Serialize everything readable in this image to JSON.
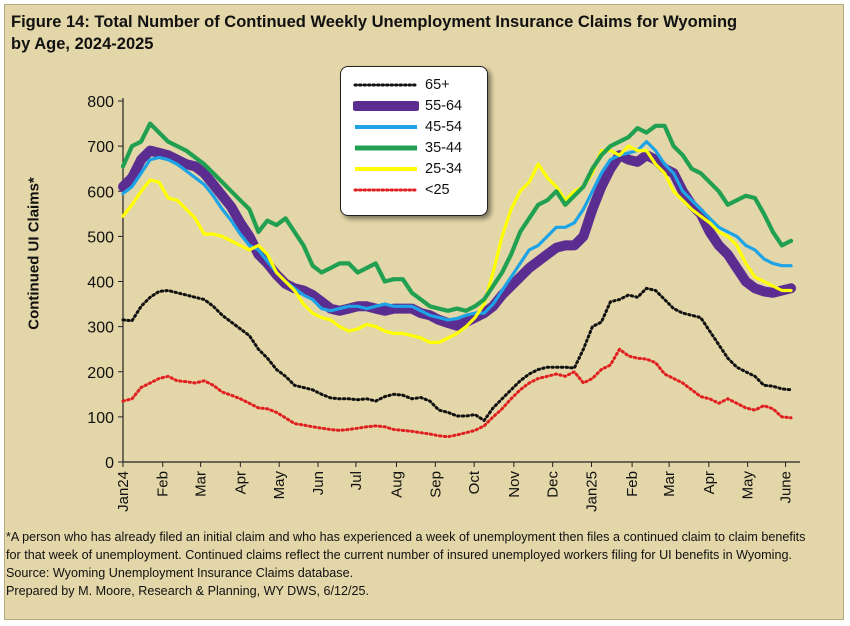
{
  "title_line1": "Figure 14: Total Number of Continued Weekly Unemployment Insurance Claims for Wyoming",
  "title_line2": "by Age, 2024-2025",
  "footer": {
    "note_line1": "*A person who has already filed an initial claim and who has experienced a week of unemployment then files a continued claim to claim benefits",
    "note_line2": "for that week of unemployment. Continued claims reflect the current number of insured unemployed workers filing for UI benefits in Wyoming.",
    "source": "Source: Wyoming Unemployment Insurance Claims database.",
    "prepared": "Prepared by M. Moore, Research & Planning, WY DWS, 6/12/25."
  },
  "colors": {
    "background": "#e3d6a8",
    "s65plus": "#111111",
    "s55_64": "#5b2d91",
    "s45_54": "#1ea3e6",
    "s35_44": "#20a050",
    "s25_34": "#ffff00",
    "sUnder25": "#e02020"
  },
  "chart_data": {
    "type": "line",
    "ylabel": "Continued UI Claims*",
    "xlabel": "",
    "ylim": [
      0,
      800
    ],
    "yticks": [
      "0",
      "100",
      "200",
      "300",
      "400",
      "500",
      "600",
      "700",
      "800"
    ],
    "x_tick_labels": [
      "Jan24",
      "Feb",
      "Mar",
      "Apr",
      "May",
      "Jun",
      "Jul",
      "Aug",
      "Sep",
      "Oct",
      "Nov",
      "Dec",
      "Jan25",
      "Feb",
      "Mar",
      "Apr",
      "May",
      "June"
    ],
    "x_tick_weeks": [
      0,
      4.4,
      8.6,
      13,
      17.3,
      21.6,
      25.8,
      30.3,
      34.6,
      38.9,
      43.3,
      47.6,
      51.9,
      56.4,
      60.5,
      64.9,
      69.2,
      73.4
    ],
    "x_weeks_max": 75,
    "grid": false,
    "legend_position": "top-center",
    "series": [
      {
        "name": "65+",
        "style": "dotted",
        "values": [
          315,
          313,
          345,
          365,
          378,
          380,
          375,
          370,
          365,
          360,
          345,
          325,
          310,
          295,
          280,
          250,
          230,
          205,
          190,
          170,
          165,
          160,
          150,
          142,
          140,
          140,
          138,
          140,
          135,
          145,
          150,
          148,
          140,
          143,
          135,
          115,
          110,
          102,
          102,
          105,
          92,
          120,
          140,
          160,
          180,
          195,
          205,
          210,
          210,
          210,
          208,
          250,
          300,
          310,
          355,
          360,
          370,
          365,
          385,
          380,
          360,
          340,
          330,
          325,
          320,
          290,
          260,
          230,
          210,
          200,
          190,
          170,
          168,
          162,
          160
        ]
      },
      {
        "name": "55-64",
        "style": "thick",
        "values": [
          610,
          630,
          670,
          690,
          685,
          680,
          670,
          660,
          655,
          640,
          615,
          590,
          565,
          530,
          500,
          460,
          440,
          415,
          395,
          385,
          380,
          370,
          355,
          340,
          335,
          340,
          345,
          345,
          340,
          335,
          340,
          340,
          340,
          330,
          325,
          315,
          308,
          302,
          310,
          320,
          330,
          345,
          370,
          390,
          410,
          430,
          445,
          460,
          475,
          480,
          480,
          500,
          560,
          610,
          650,
          680,
          670,
          665,
          680,
          670,
          650,
          640,
          600,
          570,
          550,
          510,
          480,
          460,
          430,
          400,
          385,
          378,
          375,
          380,
          385
        ]
      },
      {
        "name": "45-54",
        "style": "solid",
        "values": [
          595,
          610,
          640,
          670,
          675,
          670,
          660,
          645,
          630,
          615,
          590,
          560,
          535,
          505,
          480,
          470,
          445,
          420,
          400,
          385,
          370,
          360,
          340,
          335,
          340,
          345,
          345,
          340,
          345,
          350,
          345,
          345,
          345,
          335,
          325,
          320,
          315,
          318,
          325,
          330,
          330,
          350,
          380,
          410,
          440,
          470,
          480,
          500,
          520,
          520,
          530,
          560,
          600,
          640,
          670,
          680,
          685,
          690,
          710,
          690,
          660,
          640,
          600,
          580,
          560,
          540,
          520,
          510,
          500,
          480,
          470,
          450,
          440,
          435,
          435
        ]
      },
      {
        "name": "35-44",
        "style": "solid",
        "values": [
          655,
          700,
          710,
          750,
          730,
          710,
          700,
          690,
          675,
          660,
          640,
          620,
          600,
          580,
          560,
          510,
          535,
          525,
          540,
          510,
          480,
          435,
          420,
          430,
          440,
          440,
          420,
          430,
          440,
          400,
          405,
          405,
          375,
          360,
          345,
          340,
          335,
          340,
          335,
          345,
          360,
          390,
          420,
          460,
          510,
          540,
          570,
          580,
          600,
          570,
          590,
          610,
          650,
          680,
          700,
          710,
          720,
          740,
          730,
          745,
          745,
          700,
          680,
          650,
          640,
          620,
          600,
          570,
          580,
          590,
          585,
          550,
          510,
          480,
          490
        ]
      },
      {
        "name": "25-34",
        "style": "solid",
        "values": [
          545,
          570,
          600,
          625,
          620,
          585,
          580,
          560,
          540,
          505,
          505,
          500,
          490,
          480,
          470,
          480,
          460,
          420,
          400,
          380,
          350,
          330,
          320,
          315,
          300,
          290,
          295,
          305,
          300,
          290,
          285,
          285,
          280,
          275,
          265,
          265,
          275,
          285,
          300,
          320,
          350,
          420,
          500,
          560,
          600,
          620,
          660,
          630,
          610,
          580,
          600,
          610,
          640,
          690,
          690,
          680,
          700,
          690,
          690,
          660,
          640,
          600,
          580,
          560,
          545,
          530,
          510,
          500,
          480,
          440,
          410,
          400,
          390,
          380,
          380
        ]
      },
      {
        "name": "<25",
        "style": "dotted",
        "values": [
          135,
          140,
          165,
          175,
          185,
          190,
          180,
          178,
          175,
          180,
          170,
          155,
          148,
          140,
          130,
          120,
          118,
          110,
          98,
          85,
          82,
          78,
          75,
          72,
          70,
          72,
          75,
          78,
          80,
          78,
          72,
          70,
          68,
          65,
          62,
          58,
          56,
          60,
          65,
          70,
          80,
          100,
          118,
          140,
          160,
          175,
          185,
          190,
          195,
          190,
          200,
          175,
          185,
          205,
          215,
          250,
          235,
          230,
          228,
          220,
          195,
          185,
          175,
          160,
          145,
          140,
          130,
          140,
          130,
          120,
          115,
          125,
          118,
          100,
          98
        ]
      }
    ]
  }
}
